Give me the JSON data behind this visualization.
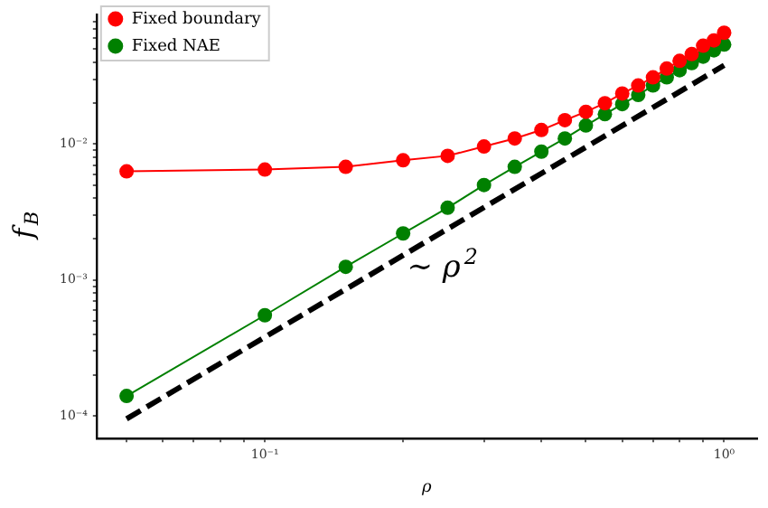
{
  "chart_data": {
    "type": "line",
    "xlabel": "ρ",
    "ylabel": "f$_{B}$",
    "log": "xy",
    "marker": "circle",
    "legend": "top left",
    "grid": false,
    "x": [
      0.05,
      0.1,
      0.15,
      0.2,
      0.25,
      0.3,
      0.35,
      0.4,
      0.45,
      0.5,
      0.55,
      0.6,
      0.65,
      0.7,
      0.75,
      0.8,
      0.85,
      0.9,
      0.95,
      1.0
    ],
    "series": [
      {
        "name": "Fixed boundary",
        "color": "#ff0000",
        "values": [
          0.0063,
          0.0065,
          0.0068,
          0.0076,
          0.0082,
          0.0096,
          0.011,
          0.0127,
          0.015,
          0.0173,
          0.02,
          0.0236,
          0.027,
          0.031,
          0.036,
          0.041,
          0.046,
          0.053,
          0.058,
          0.066
        ]
      },
      {
        "name": "Fixed NAE",
        "color": "#008000",
        "values": [
          0.00014,
          0.00055,
          0.00125,
          0.0022,
          0.0034,
          0.005,
          0.0068,
          0.0088,
          0.011,
          0.0137,
          0.0166,
          0.0197,
          0.023,
          0.027,
          0.031,
          0.035,
          0.0395,
          0.044,
          0.049,
          0.054
        ]
      },
      {
        "type": "line",
        "color": "#000000",
        "line_style": "dashed",
        "marker": "none",
        "x": [
          0.05,
          1.0
        ],
        "values": [
          9.5e-05,
          0.038
        ]
      }
    ],
    "annotations": [
      "∼ ρ$^{2}$"
    ],
    "xlim": [
      0.043,
      1.18
    ],
    "ylim": [
      6.8e-05,
      0.09
    ],
    "xticks": [
      {
        "value": 0.05,
        "label": null
      },
      {
        "value": 0.06,
        "label": null
      },
      {
        "value": 0.07,
        "label": null
      },
      {
        "value": 0.08,
        "label": null
      },
      {
        "value": 0.09,
        "label": null
      },
      {
        "value": 0.1,
        "label": "10⁻¹"
      },
      {
        "value": 0.2,
        "label": null
      },
      {
        "value": 0.3,
        "label": null
      },
      {
        "value": 0.4,
        "label": null
      },
      {
        "value": 0.5,
        "label": null
      },
      {
        "value": 0.6,
        "label": null
      },
      {
        "value": 0.7,
        "label": null
      },
      {
        "value": 0.8,
        "label": null
      },
      {
        "value": 0.9,
        "label": null
      },
      {
        "value": 1,
        "label": "10⁰"
      }
    ],
    "yticks": [
      {
        "value": 0.0001,
        "label": "10⁻⁴"
      },
      {
        "value": 0.0002,
        "label": null
      },
      {
        "value": 0.0003,
        "label": null
      },
      {
        "value": 0.0004,
        "label": null
      },
      {
        "value": 0.0005,
        "label": null
      },
      {
        "value": 0.0006,
        "label": null
      },
      {
        "value": 0.0007,
        "label": null
      },
      {
        "value": 0.0008,
        "label": null
      },
      {
        "value": 0.0009,
        "label": null
      },
      {
        "value": 0.001,
        "label": "10⁻³"
      },
      {
        "value": 0.002,
        "label": null
      },
      {
        "value": 0.003,
        "label": null
      },
      {
        "value": 0.004,
        "label": null
      },
      {
        "value": 0.005,
        "label": null
      },
      {
        "value": 0.006,
        "label": null
      },
      {
        "value": 0.007,
        "label": null
      },
      {
        "value": 0.008,
        "label": null
      },
      {
        "value": 0.009,
        "label": null
      },
      {
        "value": 0.01,
        "label": "10⁻²"
      },
      {
        "value": 0.02,
        "label": null
      },
      {
        "value": 0.03,
        "label": null
      },
      {
        "value": 0.04,
        "label": null
      },
      {
        "value": 0.05,
        "label": null
      },
      {
        "value": 0.06,
        "label": null
      },
      {
        "value": 0.07,
        "label": null
      },
      {
        "value": 0.08,
        "label": null
      }
    ]
  }
}
